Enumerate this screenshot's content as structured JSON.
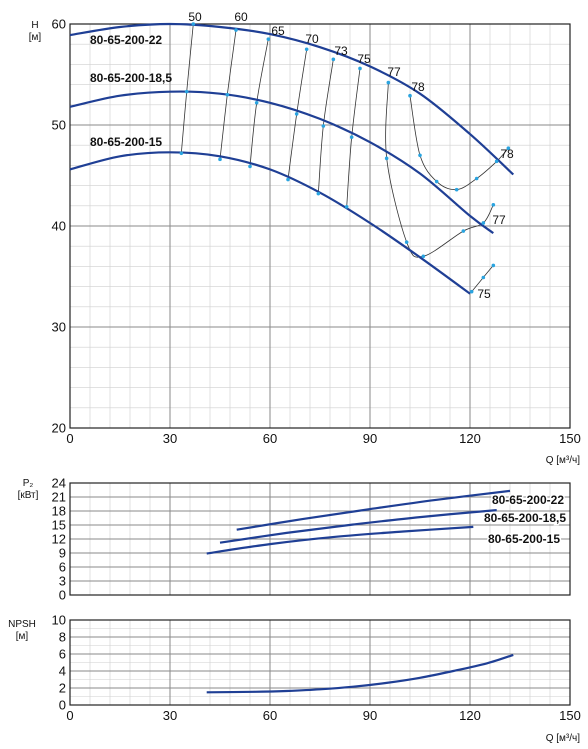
{
  "chart_data": [
    {
      "type": "line",
      "panel": "head",
      "ylabel": [
        "H",
        "[м]"
      ],
      "xlabel": "Q [м³/ч]",
      "xlim": [
        0,
        150
      ],
      "ylim": [
        20,
        60
      ],
      "xticks": [
        0,
        30,
        60,
        90,
        120,
        150
      ],
      "yticks": [
        20,
        30,
        40,
        50,
        60
      ],
      "grid": true,
      "series": [
        {
          "name": "80-65-200-22",
          "x": [
            0,
            15,
            30,
            45,
            60,
            75,
            90,
            105,
            120,
            133
          ],
          "y": [
            58.9,
            59.7,
            60.0,
            59.7,
            59.0,
            57.7,
            55.8,
            53.1,
            49.1,
            45.1
          ]
        },
        {
          "name": "80-65-200-18,5",
          "x": [
            0,
            15,
            30,
            45,
            60,
            75,
            90,
            105,
            120,
            127
          ],
          "y": [
            51.8,
            52.9,
            53.3,
            53.1,
            52.2,
            50.6,
            48.3,
            45.2,
            41.0,
            39.3
          ]
        },
        {
          "name": "80-65-200-15",
          "x": [
            0,
            15,
            30,
            45,
            60,
            75,
            90,
            105,
            120
          ],
          "y": [
            45.6,
            46.9,
            47.3,
            46.9,
            45.6,
            43.3,
            40.3,
            36.9,
            33.3
          ]
        }
      ],
      "efficiency_lines": [
        {
          "label": "50",
          "points": [
            [
              37.0,
              60.0
            ],
            [
              35.0,
              53.3
            ],
            [
              33.4,
              47.2
            ]
          ]
        },
        {
          "label": "60",
          "points": [
            [
              49.8,
              59.4
            ],
            [
              47.2,
              53.0
            ],
            [
              45.0,
              46.6
            ]
          ]
        },
        {
          "label": "65",
          "points": [
            [
              59.5,
              58.5
            ],
            [
              56.0,
              52.2
            ],
            [
              54.0,
              45.9
            ]
          ]
        },
        {
          "label": "70",
          "points": [
            [
              71.0,
              57.5
            ],
            [
              68.0,
              51.1
            ],
            [
              65.4,
              44.6
            ]
          ]
        },
        {
          "label": "73",
          "points": [
            [
              79.0,
              56.5
            ],
            [
              76.0,
              49.9
            ],
            [
              74.5,
              43.2
            ]
          ]
        },
        {
          "label": "75",
          "points": [
            [
              87.0,
              55.6
            ],
            [
              84.5,
              48.8
            ],
            [
              83.0,
              41.9
            ]
          ]
        },
        {
          "label": "77",
          "points": [
            [
              95.5,
              54.2
            ],
            [
              95.0,
              46.7
            ],
            [
              101.0,
              38.4
            ],
            [
              106.0,
              37.0
            ],
            [
              118.0,
              39.5
            ],
            [
              124.0,
              40.3
            ],
            [
              127.0,
              42.1
            ]
          ]
        },
        {
          "label": "78",
          "points": [
            [
              102.0,
              52.9
            ],
            [
              105.0,
              47.0
            ],
            [
              110.0,
              44.4
            ],
            [
              116.0,
              43.6
            ],
            [
              122.0,
              44.7
            ],
            [
              128.0,
              46.4
            ],
            [
              131.5,
              47.7
            ]
          ]
        },
        {
          "label": "75",
          "points": [
            [
              120.5,
              33.5
            ],
            [
              124.0,
              34.9
            ],
            [
              127.0,
              36.1
            ]
          ]
        }
      ],
      "efficiency_labels": [
        "50",
        "60",
        "65",
        "70",
        "73",
        "75",
        "77",
        "78",
        "78",
        "77",
        "75"
      ]
    },
    {
      "type": "line",
      "panel": "power",
      "ylabel": [
        "P₂",
        "[кВт]"
      ],
      "xlim": [
        0,
        150
      ],
      "ylim": [
        0,
        24
      ],
      "yticks": [
        0,
        3,
        6,
        9,
        12,
        15,
        18,
        21,
        24
      ],
      "grid": true,
      "series": [
        {
          "name": "80-65-200-22",
          "x": [
            50,
            70,
            90,
            110,
            132
          ],
          "y": [
            14.0,
            16.3,
            18.4,
            20.4,
            22.3
          ]
        },
        {
          "name": "80-65-200-18,5",
          "x": [
            45,
            65,
            85,
            105,
            128
          ],
          "y": [
            11.2,
            13.3,
            15.1,
            16.7,
            18.2
          ]
        },
        {
          "name": "80-65-200-15",
          "x": [
            41,
            60,
            80,
            100,
            121
          ],
          "y": [
            8.9,
            10.9,
            12.5,
            13.6,
            14.6
          ]
        }
      ]
    },
    {
      "type": "line",
      "panel": "npsh",
      "ylabel": [
        "NPSH",
        "[м]"
      ],
      "xlabel": "Q [м³/ч]",
      "xlim": [
        0,
        150
      ],
      "xticks": [
        0,
        30,
        60,
        90,
        120,
        150
      ],
      "ylim": [
        0,
        10
      ],
      "yticks": [
        0,
        2,
        4,
        6,
        8,
        10
      ],
      "grid": true,
      "series": [
        {
          "name": "",
          "x": [
            41,
            55,
            65,
            75,
            85,
            95,
            105,
            115,
            125,
            133
          ],
          "y": [
            1.5,
            1.55,
            1.65,
            1.85,
            2.15,
            2.6,
            3.2,
            4.0,
            4.9,
            5.9
          ]
        }
      ]
    }
  ],
  "colors": {
    "curve": "#1f3f95",
    "marker": "#2aa4e0",
    "grid": "#8a8a8a",
    "frame": "#222222"
  }
}
